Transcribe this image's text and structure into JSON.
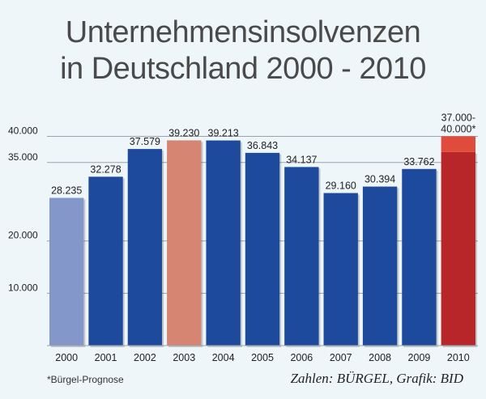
{
  "title_line_1": "Unternehmensinsolvenzen",
  "title_line_2": "in Deutschland 2000 - 2010",
  "footnote": "*Bürgel-Prognose",
  "source": "Zahlen: BÜRGEL, Grafik: BID",
  "colors": {
    "default_bar": "#1d4a9c",
    "bar_2000": "#8497cb",
    "bar_2003": "#d58572",
    "bar_2010": "#b8262a",
    "bar_2010_range": "#e04b3c"
  },
  "chart_data": {
    "type": "bar",
    "title": "Unternehmensinsolvenzen in Deutschland 2000 - 2010",
    "categories": [
      "2000",
      "2001",
      "2002",
      "2003",
      "2004",
      "2005",
      "2006",
      "2007",
      "2008",
      "2009",
      "2010"
    ],
    "values": [
      28235,
      32278,
      37579,
      39230,
      39213,
      36843,
      34137,
      29160,
      30394,
      33762,
      37000
    ],
    "value_labels": [
      "28.235",
      "32.278",
      "37.579",
      "39.230",
      "39.213",
      "36.843",
      "34.137",
      "29.160",
      "30.394",
      "33.762",
      "37.000-\n40.000*"
    ],
    "range_2010": [
      37000,
      40000
    ],
    "yticks": [
      10000,
      20000,
      35000,
      40000
    ],
    "ytick_labels": [
      "10.000",
      "20.000",
      "35.000",
      "40.000"
    ],
    "ylim": [
      0,
      41000
    ],
    "xlabel": "",
    "ylabel": ""
  }
}
